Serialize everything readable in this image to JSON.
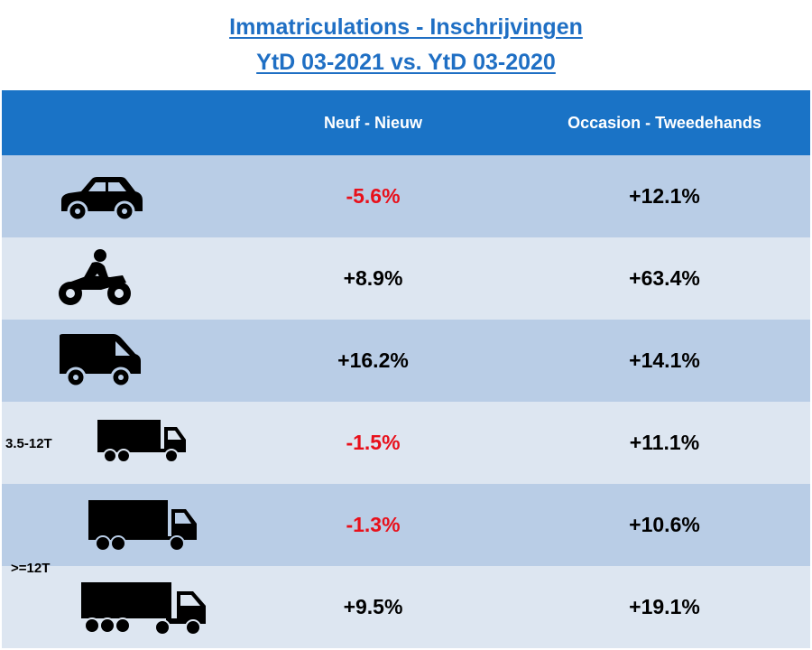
{
  "title_line1": "Immatriculations - Inschrijvingen",
  "title_line2": "YtD 03-2021 vs. YtD 03-2020",
  "colors": {
    "header_bg": "#1a73c6",
    "row_dark": "#b9cde6",
    "row_light": "#dde6f1",
    "negative": "#e8101b",
    "title": "#1f6fc4"
  },
  "chart_data": {
    "type": "table",
    "columns": [
      "",
      "Neuf - Nieuw",
      "Occasion - Tweedehands"
    ],
    "rows": [
      {
        "icon": "car-icon",
        "label": "",
        "new": "-5.6%",
        "used": "+12.1%"
      },
      {
        "icon": "motorcycle-icon",
        "label": "",
        "new": "+8.9%",
        "used": "+63.4%"
      },
      {
        "icon": "van-icon",
        "label": "",
        "new": "+16.2%",
        "used": "+14.1%"
      },
      {
        "icon": "small-truck-icon",
        "label": "3.5-12T",
        "new": "-1.5%",
        "used": "+11.1%"
      },
      {
        "icon": "truck-icon",
        "label": ">=12T",
        "new": "-1.3%",
        "used": "+10.6%"
      },
      {
        "icon": "semi-truck-icon",
        "label": "",
        "new": "+9.5%",
        "used": "+19.1%"
      }
    ]
  }
}
